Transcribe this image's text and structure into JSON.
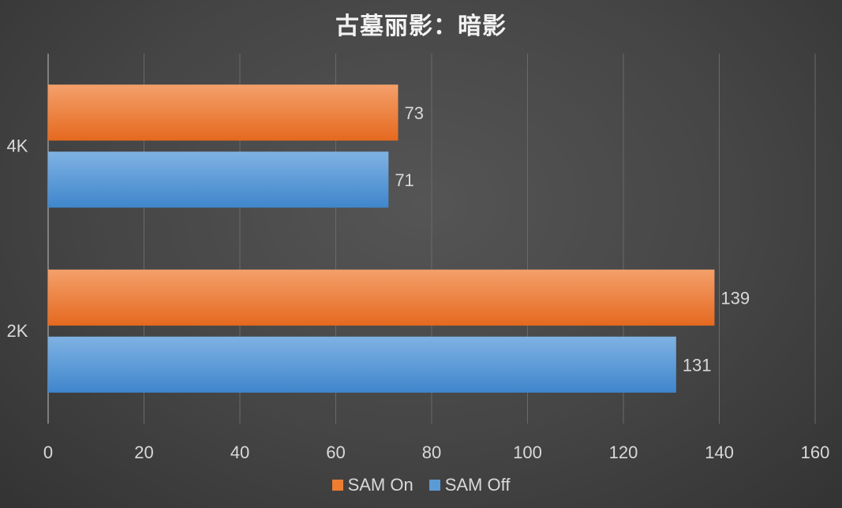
{
  "chart_data": {
    "type": "bar",
    "orientation": "horizontal",
    "title": "古墓丽影：暗影",
    "categories": [
      "4K",
      "2K"
    ],
    "series": [
      {
        "name": "SAM On",
        "values": [
          73,
          139
        ],
        "color": "#ed7d31"
      },
      {
        "name": "SAM Off",
        "values": [
          71,
          131
        ],
        "color": "#5b9bd5"
      }
    ],
    "xlabel": "",
    "ylabel": "",
    "xlim": [
      0,
      160
    ],
    "xticks": [
      "0",
      "20",
      "40",
      "60",
      "80",
      "100",
      "120",
      "140",
      "160"
    ],
    "grid": true,
    "legend": "bottom",
    "data_labels": [
      "73",
      "139",
      "71",
      "131"
    ]
  }
}
